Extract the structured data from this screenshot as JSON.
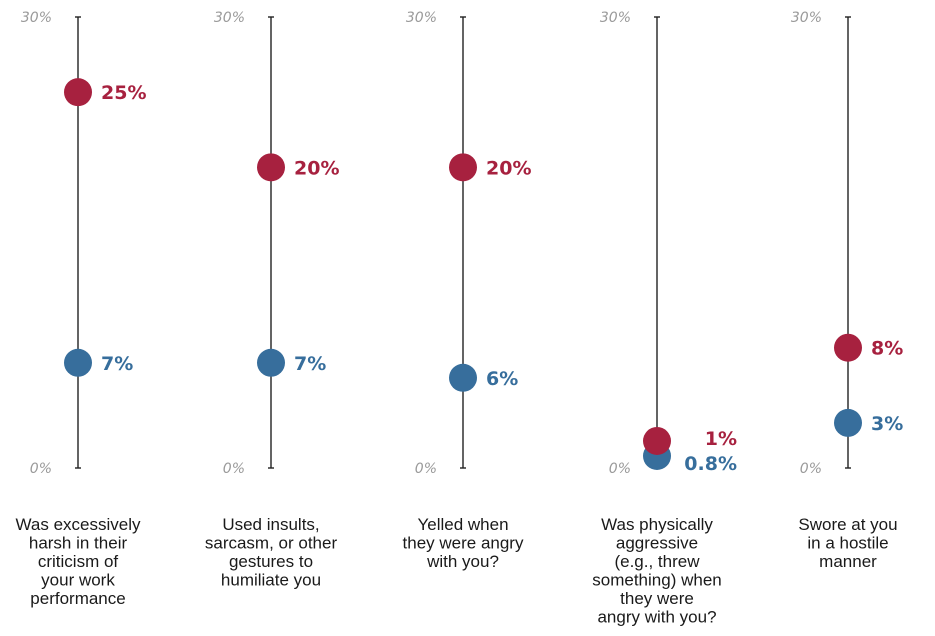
{
  "chart_data": {
    "type": "dot",
    "ylim": [
      0,
      30
    ],
    "tick_labels": [
      "0%",
      "30%"
    ],
    "colors": {
      "red": "#a7213f",
      "blue": "#376e9c"
    },
    "categories": [
      {
        "label_lines": [
          "Was excessively",
          "harsh in their",
          "criticism of",
          "your work",
          "performance"
        ],
        "red": 25,
        "red_label": "25%",
        "blue": 7,
        "blue_label": "7%"
      },
      {
        "label_lines": [
          "Used insults,",
          "sarcasm, or other",
          "gestures to",
          "humiliate you"
        ],
        "red": 20,
        "red_label": "20%",
        "blue": 7,
        "blue_label": "7%"
      },
      {
        "label_lines": [
          "Yelled when",
          "they were angry",
          "with you?"
        ],
        "red": 20,
        "red_label": "20%",
        "blue": 6,
        "blue_label": "6%"
      },
      {
        "label_lines": [
          "Was physically",
          "aggressive",
          "(e.g., threw",
          "something) when",
          "they were",
          "angry with you?"
        ],
        "red": 1,
        "red_label": "1%",
        "blue": 0.8,
        "blue_label": "0.8%"
      },
      {
        "label_lines": [
          "Swore at you",
          "in a hostile",
          "manner"
        ],
        "red": 8,
        "red_label": "8%",
        "blue": 3,
        "blue_label": "3%"
      }
    ]
  }
}
